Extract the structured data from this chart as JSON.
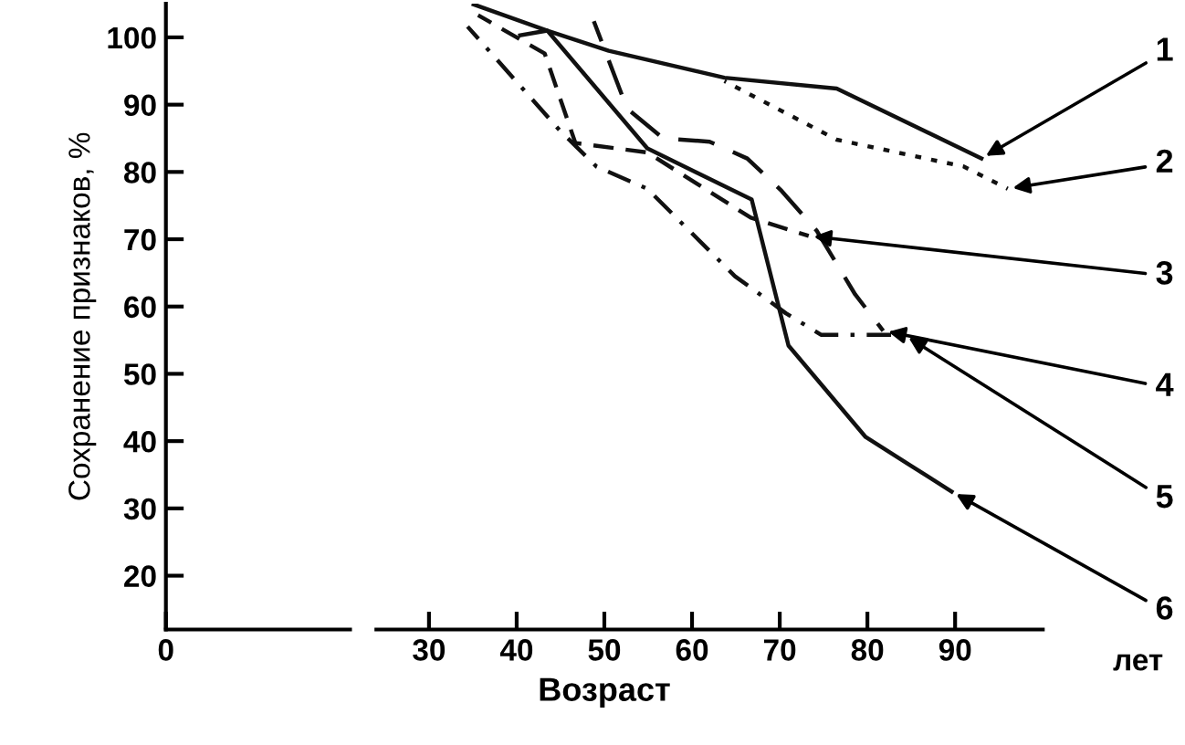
{
  "chart_data": {
    "type": "line",
    "xlabel": "Возраст",
    "ylabel": "Сохранение признаков, %",
    "xlim": [
      0,
      100
    ],
    "ylim": [
      12,
      105
    ],
    "xticks": [
      0,
      30,
      40,
      50,
      60,
      70,
      80,
      90
    ],
    "yticks": [
      20,
      30,
      40,
      50,
      60,
      70,
      80,
      90,
      100
    ],
    "grid": false,
    "legend": false,
    "marker": "none",
    "annotations": [
      "лет"
    ],
    "series": [
      {
        "name": "1",
        "color": "#111111",
        "line_style": "solid",
        "x": [
          35.1,
          43.5,
          50.5,
          63.7,
          76.5,
          93
        ],
        "values": [
          104.9,
          101,
          98,
          94,
          92.4,
          82
        ]
      },
      {
        "name": "2",
        "color": "#111111",
        "line_style": "dotted",
        "x": [
          63.7,
          76.5,
          91,
          96
        ],
        "values": [
          93.5,
          84.8,
          80.8,
          77.5
        ]
      },
      {
        "name": "3",
        "color": "#111111",
        "line_style": "dashed",
        "x": [
          35.6,
          43.2,
          46.7,
          54.9,
          66.7,
          73.3
        ],
        "values": [
          103.3,
          97.6,
          84.3,
          82.9,
          73.2,
          70.5
        ]
      },
      {
        "name": "4",
        "color": "#111111",
        "line_style": "longdash",
        "x": [
          48.8,
          52.6,
          56.7,
          62,
          66.3,
          70.2,
          74.2,
          78.6,
          81.8
        ],
        "values": [
          102.4,
          89.4,
          85,
          84.5,
          82,
          77.2,
          71.3,
          61.8,
          56.4
        ]
      },
      {
        "name": "5",
        "color": "#111111",
        "line_style": "dashdot",
        "x": [
          34.4,
          44.9,
          49.1,
          54.9,
          64.9,
          68.4,
          70.7,
          74.7,
          84.2
        ],
        "values": [
          101.6,
          86.2,
          80.8,
          77.5,
          64.5,
          61.2,
          59,
          55.8,
          55.8
        ]
      },
      {
        "name": "6",
        "color": "#111111",
        "line_style": "solid",
        "x": [
          40.4,
          43.5,
          54.9,
          66.8,
          71,
          79.8,
          89.6
        ],
        "values": [
          100.3,
          101,
          83.5,
          75.9,
          54.2,
          40.6,
          32.5
        ]
      }
    ]
  }
}
